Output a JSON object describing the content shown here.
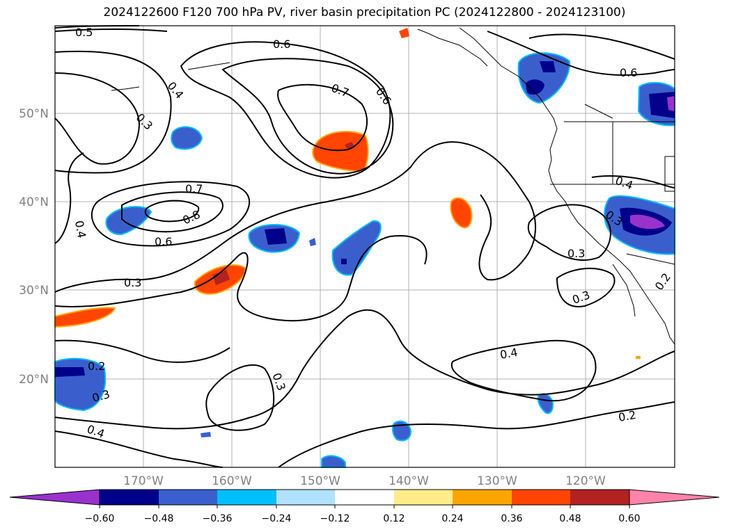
{
  "title": "2024122600 F120 700 hPa PV, river basin precipitation PC (2024122800 - 2024123100)",
  "lat_labels": [
    "50°N",
    "40°N",
    "30°N",
    "20°N"
  ],
  "lon_labels": [
    "170°W",
    "160°W",
    "150°W",
    "140°W",
    "130°W",
    "120°W"
  ],
  "contour_labels": [
    "0.5",
    "0.4",
    "0.3",
    "0.7",
    "0.8",
    "0.6",
    "0.3",
    "0.4",
    "0.7",
    "0.6",
    "0.6",
    "0.6",
    "0.4",
    "0.3",
    "0.3",
    "0.4",
    "0.2",
    "0.3",
    "0.4",
    "0.3",
    "0.2",
    "0.3",
    "0.2"
  ],
  "colorbar": {
    "ticks": [
      "−0.60",
      "−0.48",
      "−0.36",
      "−0.24",
      "−0.12",
      "0.12",
      "0.24",
      "0.36",
      "0.48",
      "0.60"
    ],
    "colors": [
      "#9932cc",
      "#00008b",
      "#3a5fcd",
      "#00bfff",
      "#b0e2ff",
      "#ffffff",
      "#ffec8b",
      "#ffa500",
      "#ff4500",
      "#b22222",
      "#ff82ab"
    ]
  }
}
